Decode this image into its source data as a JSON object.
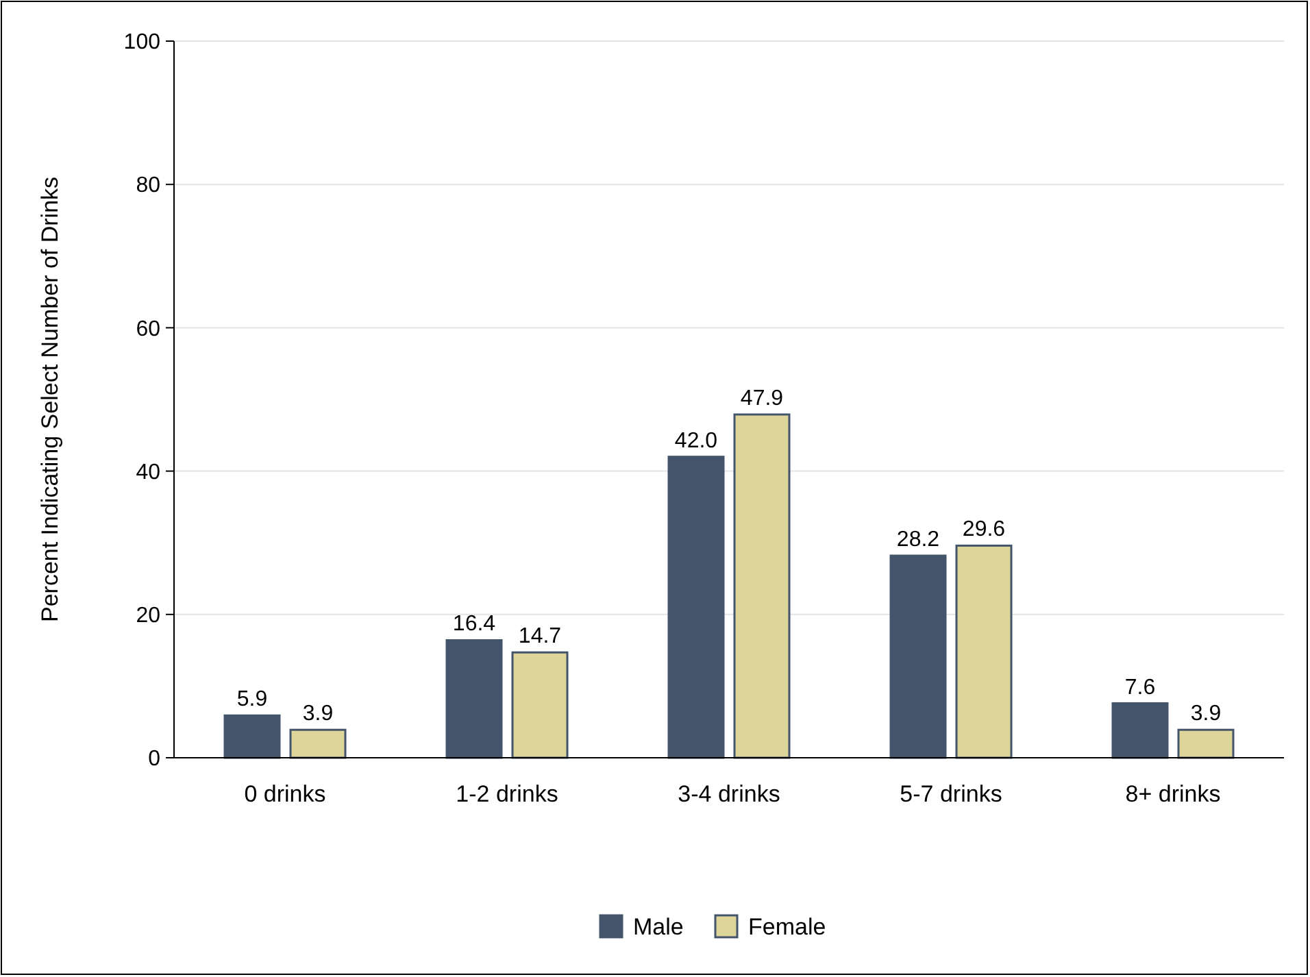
{
  "chart_data": {
    "type": "bar",
    "ylabel": "Percent Indicating Select Number of Drinks",
    "categories": [
      "0 drinks",
      "1-2 drinks",
      "3-4 drinks",
      "5-7 drinks",
      "8+ drinks"
    ],
    "series": [
      {
        "name": "Male",
        "color": "#44546a",
        "values": [
          5.9,
          16.4,
          42.0,
          28.2,
          7.6
        ],
        "value_labels": [
          "5.9",
          "16.4",
          "42.0",
          "28.2",
          "7.6"
        ]
      },
      {
        "name": "Female",
        "color": "#ddd59a",
        "values": [
          3.9,
          14.7,
          47.9,
          29.6,
          3.9
        ],
        "value_labels": [
          "3.9",
          "14.7",
          "47.9",
          "29.6",
          "3.9"
        ]
      }
    ],
    "ylim": [
      0,
      100
    ],
    "yticks": [
      0,
      20,
      40,
      60,
      80,
      100
    ],
    "grid": "y",
    "legend": "bottom"
  }
}
